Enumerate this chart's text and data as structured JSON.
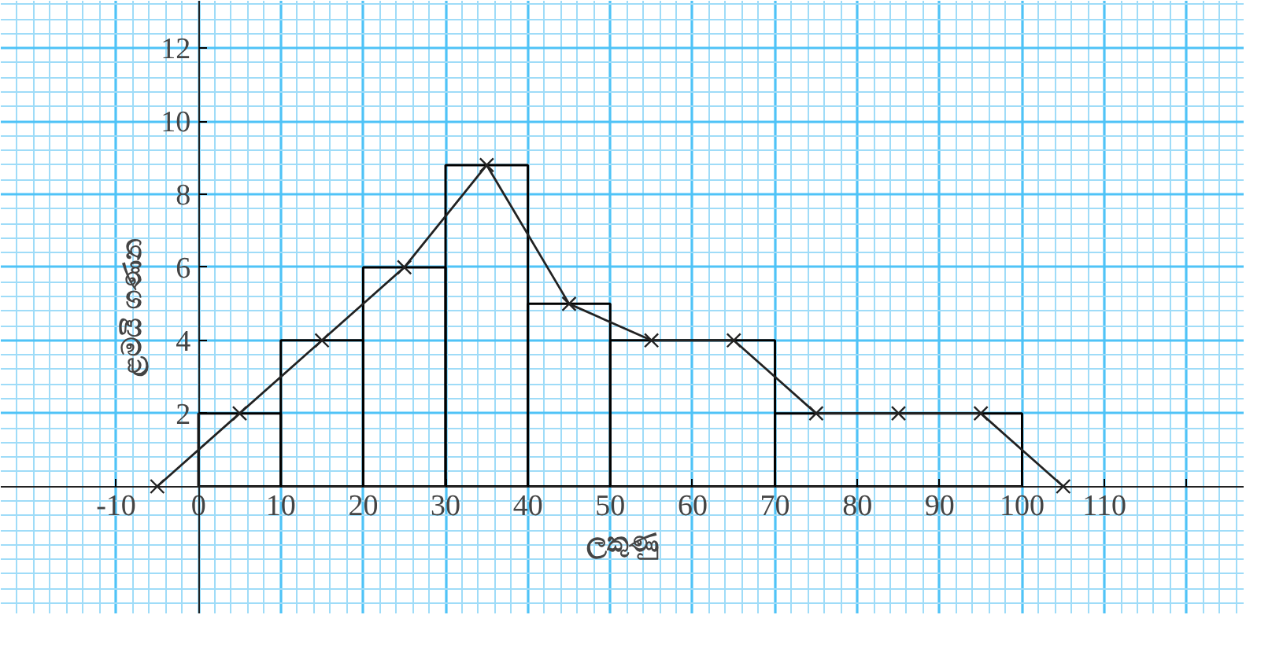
{
  "chart_data": {
    "type": "histogram",
    "xlabel": "ලකුණු",
    "ylabel": "ළමයි ගණන",
    "bins": [
      0,
      10,
      20,
      30,
      40,
      50,
      70,
      100
    ],
    "values": [
      2,
      4,
      6,
      8.8,
      5,
      4,
      2
    ],
    "color": "#000000",
    "series": [
      {
        "type": "line",
        "color": "#222222",
        "x": [
          -5,
          5,
          15,
          25,
          35,
          45,
          55,
          65,
          75,
          85,
          95,
          105
        ],
        "values": [
          0,
          2,
          4,
          6,
          8.8,
          5,
          4,
          4,
          2,
          2,
          2,
          0
        ]
      }
    ],
    "marker": "cross",
    "xlim": [
      -24,
      127
    ],
    "ylim": [
      -3.5,
      13.3
    ],
    "xticks": [
      -10,
      0,
      10,
      20,
      30,
      40,
      50,
      60,
      70,
      80,
      90,
      100,
      110,
      {
        "value": 120,
        "label": null
      }
    ],
    "yticks": [
      2,
      4,
      6,
      8,
      10,
      12
    ],
    "grid": true
  }
}
